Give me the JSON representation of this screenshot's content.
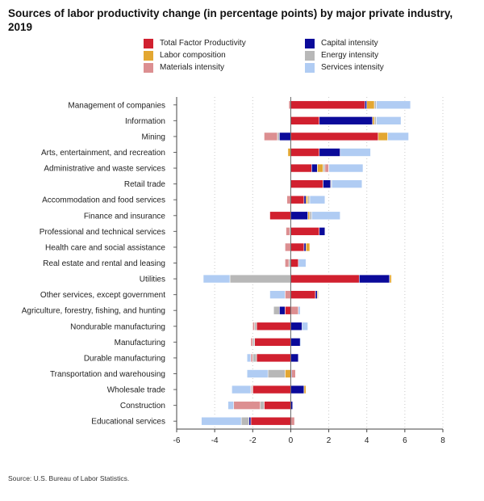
{
  "title": "Sources of labor productivity change (in percentage points) by major private industry, 2019",
  "source": "Source: U.S. Bureau of Labor Statistics.",
  "colors": {
    "Total Factor Productivity": "#d1202f",
    "Capital intensity": "#0b0a9a",
    "Labor composition": "#e3a732",
    "Energy intensity": "#b8b8b8",
    "Materials intensity": "#dc8f91",
    "Services intensity": "#b0ccf3"
  },
  "legend": [
    "Total Factor Productivity",
    "Capital intensity",
    "Labor composition",
    "Energy intensity",
    "Materials intensity",
    "Services intensity"
  ],
  "chart_data": {
    "type": "bar",
    "orientation": "horizontal",
    "stacked": true,
    "title": "Sources of labor productivity change (in percentage points) by major private industry, 2019",
    "xlim": [
      -6,
      8
    ],
    "xticks": [
      -6,
      -4,
      -2,
      0,
      2,
      4,
      6,
      8
    ],
    "xtick_labels": [
      "-6",
      "-4",
      "-2",
      "0",
      "2",
      "4",
      "6",
      "8"
    ],
    "grid": "vertical dotted",
    "legend_position": "top",
    "categories": [
      "Management of companies",
      "Information",
      "Mining",
      "Arts, entertainment, and recreation",
      "Administrative and waste services",
      "Retail trade",
      "Accommodation and food services",
      "Finance and insurance",
      "Professional and technical services",
      "Health care and social assistance",
      "Real estate and rental and leasing",
      "Utilities",
      "Other services, except government",
      "Agriculture, forestry, fishing, and hunting",
      "Nondurable manufacturing",
      "Manufacturing",
      "Durable manufacturing",
      "Transportation and warehousing",
      "Wholesale trade",
      "Construction",
      "Educational services"
    ],
    "series": [
      {
        "name": "Total Factor Productivity",
        "values": [
          3.9,
          1.5,
          4.6,
          1.5,
          1.1,
          1.7,
          0.7,
          -1.1,
          1.5,
          0.7,
          0.4,
          3.6,
          1.3,
          -0.3,
          -1.8,
          -1.9,
          -1.8,
          0.0,
          -2.0,
          -1.4,
          -2.1
        ]
      },
      {
        "name": "Capital intensity",
        "values": [
          0.1,
          2.8,
          -0.6,
          1.1,
          0.3,
          0.4,
          0.1,
          0.9,
          0.3,
          0.1,
          0.0,
          1.6,
          0.1,
          -0.3,
          0.6,
          0.5,
          0.4,
          0.05,
          0.7,
          0.1,
          -0.1
        ]
      },
      {
        "name": "Labor composition",
        "values": [
          0.4,
          0.1,
          0.5,
          -0.15,
          0.3,
          0.0,
          0.1,
          0.1,
          0.0,
          0.2,
          0.0,
          0.1,
          0.05,
          0.0,
          0.0,
          0.0,
          0.0,
          -0.3,
          0.1,
          0.0,
          0.0
        ]
      },
      {
        "name": "Energy intensity",
        "values": [
          0.1,
          0.1,
          -0.1,
          0.0,
          0.1,
          0.05,
          0.1,
          0.1,
          -0.05,
          0.0,
          -0.1,
          -3.2,
          0.0,
          -0.3,
          -0.1,
          -0.1,
          -0.2,
          -0.9,
          -0.05,
          -0.2,
          -0.4
        ]
      },
      {
        "name": "Materials intensity",
        "values": [
          -0.1,
          0.0,
          -0.7,
          0.0,
          0.2,
          0.0,
          -0.2,
          0.0,
          -0.2,
          -0.3,
          -0.2,
          0.0,
          -0.3,
          0.4,
          -0.1,
          -0.1,
          -0.1,
          0.2,
          -0.05,
          -1.4,
          0.2
        ]
      },
      {
        "name": "Services intensity",
        "values": [
          1.8,
          1.3,
          1.1,
          1.6,
          1.8,
          1.6,
          0.8,
          1.5,
          0.0,
          0.0,
          0.4,
          -1.4,
          -0.8,
          0.1,
          0.3,
          0.05,
          -0.2,
          -1.1,
          -1.0,
          -0.3,
          -2.1
        ]
      }
    ]
  }
}
